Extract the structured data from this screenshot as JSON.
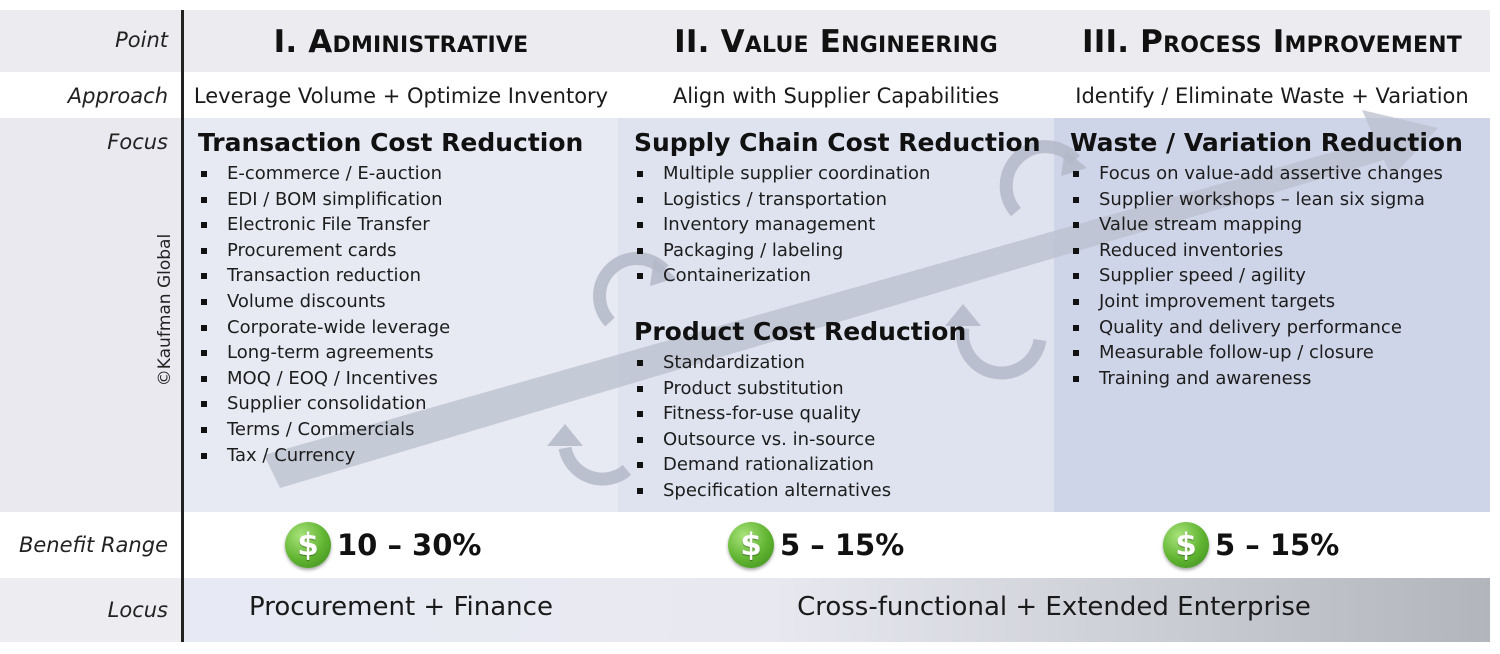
{
  "row_labels": {
    "point": "Point",
    "approach": "Approach",
    "focus": "Focus",
    "benefit": "Benefit Range",
    "locus": "Locus"
  },
  "copyright": "©Kaufman Global",
  "columns": [
    {
      "title": "I. Administrative",
      "approach": "Leverage Volume + Optimize Inventory",
      "focus_sections": [
        {
          "heading": "Transaction Cost Reduction",
          "items": [
            "E-commerce / E-auction",
            "EDI / BOM simplification",
            "Electronic File Transfer",
            "Procurement cards",
            "Transaction reduction",
            "Volume discounts",
            "Corporate-wide leverage",
            "Long-term agreements",
            "MOQ / EOQ / Incentives",
            "Supplier consolidation",
            "Terms / Commercials",
            "Tax / Currency"
          ]
        }
      ],
      "benefit": "10 – 30%"
    },
    {
      "title": "II. Value Engineering",
      "approach": "Align with Supplier Capabilities",
      "focus_sections": [
        {
          "heading": "Supply Chain Cost Reduction",
          "items": [
            "Multiple supplier coordination",
            "Logistics / transportation",
            "Inventory management",
            "Packaging / labeling",
            "Containerization"
          ]
        },
        {
          "heading": "Product Cost Reduction",
          "items": [
            "Standardization",
            "Product substitution",
            "Fitness-for-use quality",
            "Outsource vs. in-source",
            "Demand rationalization",
            "Specification alternatives"
          ]
        }
      ],
      "benefit": "5 – 15%"
    },
    {
      "title": "III. Process Improvement",
      "approach": "Identify / Eliminate Waste + Variation",
      "focus_sections": [
        {
          "heading": "Waste / Variation Reduction",
          "items": [
            "Focus on value-add assertive changes",
            "Supplier workshops – lean six sigma",
            "Value stream mapping",
            "Reduced inventories",
            "Supplier speed / agility",
            "Joint improvement targets",
            "Quality and delivery performance",
            "Measurable follow-up / closure",
            "Training and awareness"
          ]
        }
      ],
      "benefit": "5 – 15%"
    }
  ],
  "benefit_icon": "dollar-coin-icon",
  "benefit_symbol": "$",
  "locus": {
    "administrative": "Procurement + Finance",
    "extended": "Cross-functional + Extended Enterprise"
  },
  "colors": {
    "coin_green": "#5fb330",
    "arrow_fill": "#b9bfcd"
  }
}
